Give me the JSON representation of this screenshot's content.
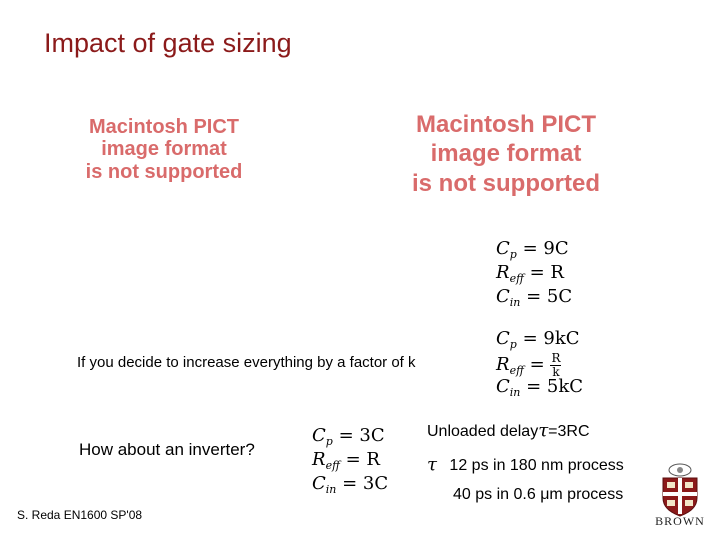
{
  "slide": {
    "title": "Impact of gate sizing",
    "pict_placeholder_left": [
      "Macintosh PICT",
      "image format",
      "is not supported"
    ],
    "pict_placeholder_right": [
      "Macintosh PICT",
      "image format",
      "is not supported"
    ],
    "scale_text": "If you decide to increase everything by a factor of k",
    "inverter_question": "How about an inverter?",
    "unloaded_delay": "Unloaded delay",
    "unloaded_delay_value": "=3RC",
    "delay_180nm": "12 ps in 180 nm process",
    "delay_06um_prefix": "40 ps in 0.6",
    "delay_06um_unit": "μ",
    "delay_06um_suffix": "m process",
    "tau_symbol": "τ",
    "footer": "S. Reda EN1600 SP'08",
    "logo_text": "BROWN"
  },
  "equations": {
    "base": {
      "cp_val": "= 9C",
      "reff_val": "= R",
      "cin_val": "= 5C"
    },
    "scaled": {
      "cp_val": "= 9kC",
      "reff_frac_num": "R",
      "reff_frac_den": "k",
      "cin_val": "= 5kC"
    },
    "inverter": {
      "cp_val": "= 3C",
      "reff_val": "= R",
      "cin_val": "= 3C"
    },
    "labels": {
      "C": "C",
      "R": "R",
      "p": "p",
      "eff": "eff",
      "in": "in",
      "eq": "="
    }
  },
  "colors": {
    "title": "#8b1a1a",
    "placeholder": "#d96b6b",
    "logo": "#8b1a1a"
  }
}
